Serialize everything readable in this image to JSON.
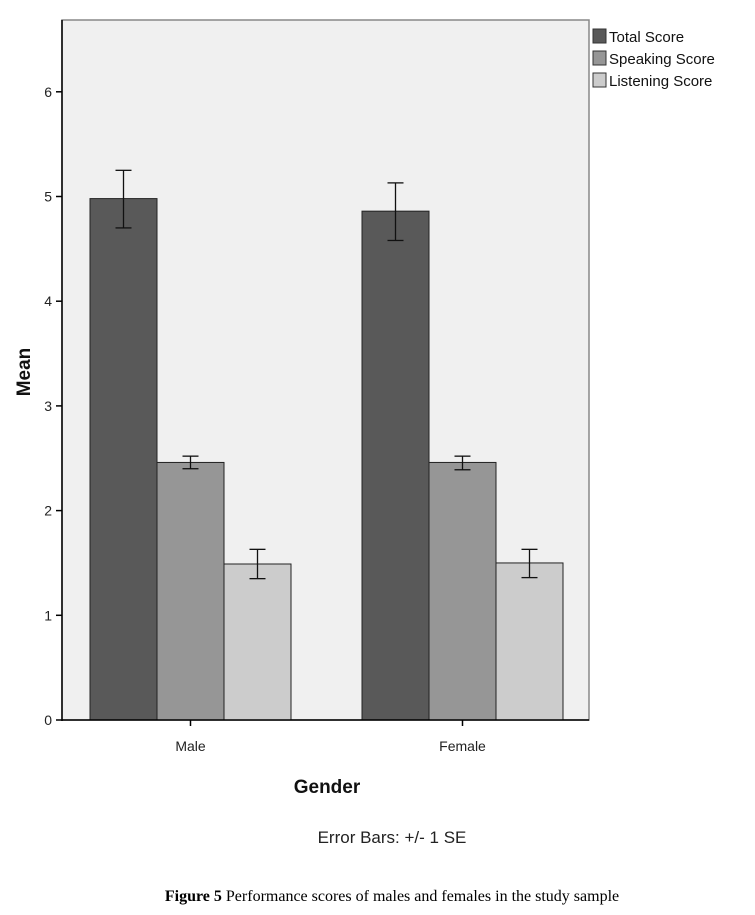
{
  "chart_data": {
    "type": "bar",
    "title": "",
    "xlabel": "Gender",
    "ylabel": "Mean",
    "ylim": [
      0,
      6.6
    ],
    "yticks": [
      0,
      1,
      2,
      3,
      4,
      5,
      6
    ],
    "categories": [
      "Male",
      "Female"
    ],
    "series": [
      {
        "name": "Total Score",
        "color": "#595959",
        "values": [
          4.98,
          4.86
        ],
        "se_low": [
          4.7,
          4.58
        ],
        "se_high": [
          5.25,
          5.13
        ]
      },
      {
        "name": "Speaking Score",
        "color": "#969696",
        "values": [
          2.46,
          2.46
        ],
        "se_low": [
          2.4,
          2.39
        ],
        "se_high": [
          2.52,
          2.52
        ]
      },
      {
        "name": "Listening Score",
        "color": "#cccccc",
        "values": [
          1.49,
          1.5
        ],
        "se_low": [
          1.35,
          1.36
        ],
        "se_high": [
          1.63,
          1.63
        ]
      }
    ],
    "legend": "top-right",
    "grid": false,
    "note": "Error Bars: +/- 1 SE"
  },
  "caption": {
    "label": "Figure 5",
    "text": " Performance scores of males and females in the study sample"
  }
}
